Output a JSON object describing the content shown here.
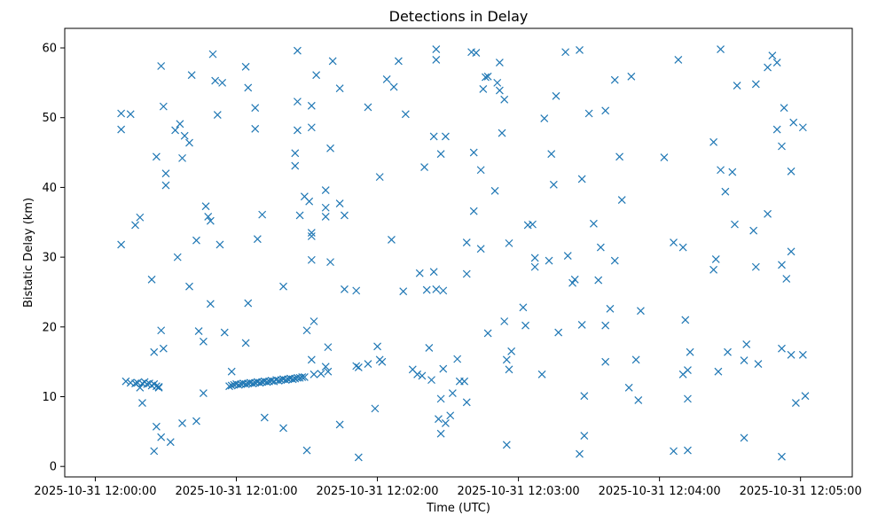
{
  "chart_data": {
    "type": "scatter",
    "title": "Detections in Delay",
    "xlabel": "Time (UTC)",
    "ylabel": "Bistatic Delay (km)",
    "marker": "x",
    "color": "#1f77b4",
    "grid": false,
    "x_unit": "seconds after 2025-10-31 12:00:00",
    "xlim": [
      -13,
      322
    ],
    "ylim": [
      -1.5,
      62.8
    ],
    "xticks": [
      {
        "value": 0,
        "label": "2025-10-31 12:00:00"
      },
      {
        "value": 60,
        "label": "2025-10-31 12:01:00"
      },
      {
        "value": 120,
        "label": "2025-10-31 12:02:00"
      },
      {
        "value": 180,
        "label": "2025-10-31 12:03:00"
      },
      {
        "value": 240,
        "label": "2025-10-31 12:04:00"
      },
      {
        "value": 300,
        "label": "2025-10-31 12:05:00"
      }
    ],
    "yticks": [
      0,
      10,
      20,
      30,
      40,
      50,
      60
    ],
    "points": [
      [
        11,
        50.6
      ],
      [
        11,
        48.3
      ],
      [
        15,
        50.5
      ],
      [
        11,
        31.8
      ],
      [
        17,
        34.6
      ],
      [
        19,
        35.7
      ],
      [
        13,
        12.2
      ],
      [
        15,
        12.0
      ],
      [
        17,
        11.9
      ],
      [
        18,
        12.0
      ],
      [
        19,
        11.3
      ],
      [
        20,
        11.9
      ],
      [
        21,
        12.1
      ],
      [
        22,
        11.8
      ],
      [
        23,
        11.9
      ],
      [
        24,
        11.6
      ],
      [
        25,
        11.8
      ],
      [
        26,
        11.5
      ],
      [
        27,
        11.4
      ],
      [
        20,
        9.1
      ],
      [
        24,
        26.8
      ],
      [
        25,
        16.4
      ],
      [
        26,
        44.4
      ],
      [
        28,
        57.4
      ],
      [
        29,
        51.6
      ],
      [
        30,
        42.0
      ],
      [
        30,
        40.3
      ],
      [
        28,
        19.5
      ],
      [
        29,
        16.9
      ],
      [
        27,
        11.3
      ],
      [
        26,
        5.7
      ],
      [
        28,
        4.2
      ],
      [
        25,
        2.2
      ],
      [
        32,
        3.5
      ],
      [
        34,
        48.2
      ],
      [
        36,
        49.1
      ],
      [
        37,
        44.2
      ],
      [
        38,
        47.4
      ],
      [
        40,
        46.4
      ],
      [
        35,
        30.0
      ],
      [
        40,
        25.8
      ],
      [
        41,
        56.1
      ],
      [
        37,
        6.2
      ],
      [
        43,
        6.5
      ],
      [
        43,
        32.4
      ],
      [
        44,
        19.4
      ],
      [
        46,
        10.5
      ],
      [
        46,
        17.9
      ],
      [
        47,
        37.3
      ],
      [
        48,
        35.8
      ],
      [
        49,
        35.2
      ],
      [
        49,
        23.3
      ],
      [
        50,
        59.1
      ],
      [
        51,
        55.3
      ],
      [
        52,
        50.4
      ],
      [
        53,
        31.8
      ],
      [
        54,
        55.0
      ],
      [
        55,
        19.2
      ],
      [
        58,
        13.6
      ],
      [
        57,
        11.5
      ],
      [
        58,
        11.6
      ],
      [
        59,
        11.7
      ],
      [
        60,
        11.8
      ],
      [
        61,
        11.7
      ],
      [
        62,
        11.8
      ],
      [
        63,
        11.9
      ],
      [
        64,
        11.8
      ],
      [
        65,
        11.9
      ],
      [
        66,
        12.0
      ],
      [
        67,
        11.9
      ],
      [
        68,
        12.0
      ],
      [
        69,
        12.1
      ],
      [
        70,
        12.0
      ],
      [
        71,
        12.1
      ],
      [
        72,
        12.2
      ],
      [
        73,
        12.1
      ],
      [
        74,
        12.2
      ],
      [
        75,
        12.3
      ],
      [
        76,
        12.2
      ],
      [
        77,
        12.4
      ],
      [
        78,
        12.3
      ],
      [
        79,
        12.4
      ],
      [
        80,
        12.5
      ],
      [
        81,
        12.4
      ],
      [
        82,
        12.5
      ],
      [
        83,
        12.6
      ],
      [
        84,
        12.5
      ],
      [
        85,
        12.6
      ],
      [
        86,
        12.7
      ],
      [
        87,
        12.7
      ],
      [
        88,
        12.8
      ],
      [
        89,
        12.8
      ],
      [
        64,
        17.7
      ],
      [
        64,
        57.3
      ],
      [
        65,
        54.3
      ],
      [
        65,
        23.4
      ],
      [
        68,
        51.4
      ],
      [
        68,
        48.4
      ],
      [
        69,
        32.6
      ],
      [
        71,
        36.1
      ],
      [
        72,
        7.0
      ],
      [
        80,
        5.5
      ],
      [
        80,
        25.8
      ],
      [
        85,
        44.9
      ],
      [
        85,
        43.1
      ],
      [
        86,
        59.6
      ],
      [
        86,
        52.3
      ],
      [
        86,
        48.2
      ],
      [
        87,
        36.0
      ],
      [
        89,
        38.7
      ],
      [
        90,
        19.5
      ],
      [
        90,
        2.3
      ],
      [
        91,
        38.0
      ],
      [
        92,
        51.7
      ],
      [
        92,
        48.6
      ],
      [
        92,
        33.0
      ],
      [
        92,
        33.5
      ],
      [
        92,
        29.6
      ],
      [
        92,
        15.3
      ],
      [
        93,
        20.8
      ],
      [
        94,
        56.1
      ],
      [
        93,
        13.2
      ],
      [
        96,
        13.3
      ],
      [
        98,
        39.6
      ],
      [
        98,
        37.1
      ],
      [
        98,
        35.8
      ],
      [
        98,
        14.3
      ],
      [
        99,
        17.1
      ],
      [
        99,
        13.6
      ],
      [
        100,
        45.6
      ],
      [
        100,
        29.3
      ],
      [
        101,
        58.1
      ],
      [
        104,
        54.2
      ],
      [
        104,
        37.7
      ],
      [
        104,
        6.0
      ],
      [
        106,
        36.0
      ],
      [
        106,
        25.4
      ],
      [
        111,
        25.2
      ],
      [
        111,
        14.4
      ],
      [
        112,
        14.2
      ],
      [
        112,
        1.3
      ],
      [
        116,
        51.5
      ],
      [
        116,
        14.7
      ],
      [
        119,
        8.3
      ],
      [
        120,
        17.2
      ],
      [
        121,
        41.5
      ],
      [
        121,
        15.3
      ],
      [
        122,
        15.0
      ],
      [
        124,
        55.5
      ],
      [
        126,
        32.5
      ],
      [
        127,
        54.4
      ],
      [
        129,
        58.1
      ],
      [
        131,
        25.1
      ],
      [
        132,
        50.5
      ],
      [
        135,
        13.9
      ],
      [
        137,
        13.2
      ],
      [
        138,
        27.7
      ],
      [
        139,
        13.0
      ],
      [
        140,
        42.9
      ],
      [
        141,
        25.3
      ],
      [
        142,
        17.0
      ],
      [
        143,
        12.4
      ],
      [
        144,
        27.9
      ],
      [
        144,
        47.3
      ],
      [
        145,
        59.8
      ],
      [
        145,
        58.3
      ],
      [
        145,
        25.4
      ],
      [
        147,
        44.8
      ],
      [
        148,
        25.2
      ],
      [
        149,
        47.3
      ],
      [
        146,
        6.8
      ],
      [
        148,
        14.0
      ],
      [
        147,
        4.7
      ],
      [
        147,
        9.7
      ],
      [
        149,
        6.2
      ],
      [
        152,
        10.5
      ],
      [
        151,
        7.3
      ],
      [
        154,
        15.4
      ],
      [
        155,
        12.2
      ],
      [
        157,
        12.2
      ],
      [
        158,
        9.2
      ],
      [
        158,
        32.1
      ],
      [
        158,
        27.6
      ],
      [
        160,
        59.4
      ],
      [
        161,
        45.0
      ],
      [
        161,
        36.6
      ],
      [
        162,
        59.3
      ],
      [
        164,
        31.2
      ],
      [
        164,
        42.5
      ],
      [
        165,
        54.1
      ],
      [
        166,
        55.8
      ],
      [
        167,
        55.9
      ],
      [
        167,
        19.1
      ],
      [
        170,
        39.5
      ],
      [
        171,
        55.0
      ],
      [
        172,
        53.9
      ],
      [
        172,
        57.9
      ],
      [
        173,
        47.8
      ],
      [
        174,
        52.6
      ],
      [
        174,
        20.8
      ],
      [
        175,
        15.3
      ],
      [
        175,
        3.1
      ],
      [
        176,
        13.9
      ],
      [
        177,
        16.5
      ],
      [
        176,
        32.0
      ],
      [
        182,
        22.8
      ],
      [
        183,
        20.2
      ],
      [
        184,
        34.6
      ],
      [
        186,
        34.7
      ],
      [
        187,
        29.9
      ],
      [
        187,
        28.6
      ],
      [
        190,
        13.2
      ],
      [
        191,
        49.9
      ],
      [
        193,
        29.5
      ],
      [
        194,
        44.8
      ],
      [
        195,
        40.4
      ],
      [
        196,
        53.1
      ],
      [
        197,
        19.2
      ],
      [
        200,
        59.4
      ],
      [
        201,
        30.2
      ],
      [
        203,
        26.3
      ],
      [
        204,
        26.8
      ],
      [
        206,
        59.7
      ],
      [
        207,
        41.2
      ],
      [
        207,
        20.3
      ],
      [
        208,
        10.1
      ],
      [
        208,
        4.4
      ],
      [
        206,
        1.8
      ],
      [
        210,
        50.6
      ],
      [
        212,
        34.8
      ],
      [
        214,
        26.7
      ],
      [
        215,
        31.4
      ],
      [
        217,
        15.0
      ],
      [
        217,
        51.0
      ],
      [
        217,
        20.2
      ],
      [
        219,
        22.6
      ],
      [
        221,
        55.4
      ],
      [
        221,
        29.5
      ],
      [
        223,
        44.4
      ],
      [
        224,
        38.2
      ],
      [
        227,
        11.3
      ],
      [
        228,
        55.9
      ],
      [
        230,
        15.3
      ],
      [
        231,
        9.5
      ],
      [
        232,
        22.3
      ],
      [
        242,
        44.3
      ],
      [
        246,
        32.1
      ],
      [
        246,
        2.2
      ],
      [
        248,
        58.3
      ],
      [
        250,
        31.4
      ],
      [
        251,
        21.0
      ],
      [
        250,
        13.2
      ],
      [
        252,
        13.8
      ],
      [
        252,
        9.7
      ],
      [
        252,
        2.3
      ],
      [
        253,
        16.4
      ],
      [
        263,
        46.5
      ],
      [
        264,
        29.7
      ],
      [
        263,
        28.2
      ],
      [
        265,
        13.6
      ],
      [
        266,
        59.8
      ],
      [
        266,
        42.5
      ],
      [
        268,
        39.4
      ],
      [
        269,
        16.4
      ],
      [
        271,
        42.2
      ],
      [
        273,
        54.6
      ],
      [
        272,
        34.7
      ],
      [
        276,
        15.2
      ],
      [
        276,
        4.1
      ],
      [
        277,
        17.5
      ],
      [
        280,
        33.8
      ],
      [
        281,
        54.8
      ],
      [
        281,
        28.6
      ],
      [
        282,
        14.7
      ],
      [
        286,
        57.2
      ],
      [
        286,
        36.2
      ],
      [
        288,
        58.9
      ],
      [
        290,
        57.9
      ],
      [
        290,
        48.3
      ],
      [
        292,
        45.9
      ],
      [
        292,
        28.9
      ],
      [
        292,
        16.9
      ],
      [
        292,
        1.4
      ],
      [
        293,
        51.4
      ],
      [
        294,
        26.9
      ],
      [
        296,
        42.3
      ],
      [
        296,
        30.8
      ],
      [
        296,
        16.0
      ],
      [
        297,
        49.3
      ],
      [
        298,
        9.1
      ],
      [
        301,
        48.6
      ],
      [
        301,
        16.0
      ],
      [
        302,
        10.1
      ]
    ]
  }
}
